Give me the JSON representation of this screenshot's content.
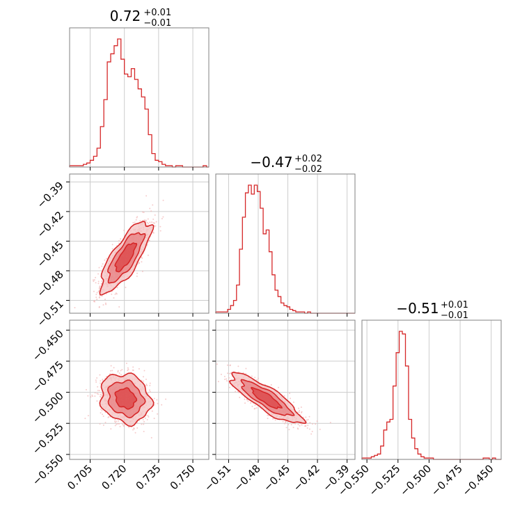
{
  "colors": {
    "accent": "#d62728",
    "fill_light": "#f4c1c2",
    "fill_mid": "#e77f80",
    "fill_dark": "#d62728",
    "grid": "#cccccc",
    "frame": "#808080",
    "scatter": "#f2b6b7"
  },
  "chart_data": [
    {
      "type": "histogram",
      "panel": "hist-1",
      "title": {
        "value": "0.72",
        "plus": "+0.01",
        "minus": "−0.01"
      },
      "xlim": [
        0.696,
        0.757
      ],
      "xticks": [
        0.705,
        0.72,
        0.735,
        0.75
      ],
      "xtick_labels": [
        "0.705",
        "0.720",
        "0.735",
        "0.750"
      ],
      "bin_edges_start": 0.696,
      "bin_width": 0.0015,
      "counts": [
        1,
        1,
        1,
        1,
        2,
        3,
        5,
        8,
        14,
        30,
        50,
        78,
        84,
        90,
        95,
        80,
        69,
        67,
        73,
        65,
        58,
        52,
        43,
        24,
        10,
        5,
        4,
        2,
        1,
        1,
        0,
        1,
        1,
        0,
        0,
        0,
        0,
        0,
        0,
        1,
        0
      ]
    },
    {
      "type": "scatter-contour",
      "panel": "joint-2-1",
      "xlim": [
        0.696,
        0.757
      ],
      "ylim": [
        -0.523,
        -0.382
      ],
      "yticks": [
        -0.39,
        -0.42,
        -0.45,
        -0.48,
        -0.51
      ],
      "ytick_labels": [
        "−0.39",
        "−0.42",
        "−0.45",
        "−0.48",
        "−0.51"
      ],
      "center": [
        0.7205,
        -0.466
      ],
      "sigma": [
        0.0055,
        0.018
      ],
      "correlation": 0.78
    },
    {
      "type": "histogram",
      "panel": "hist-2",
      "title": {
        "value": "−0.47",
        "plus": "+0.02",
        "minus": "−0.02"
      },
      "xlim": [
        -0.523,
        -0.382
      ],
      "xticks": [
        -0.51,
        -0.48,
        -0.45,
        -0.42,
        -0.39
      ],
      "xtick_labels": [
        "−0.51",
        "−0.48",
        "−0.45",
        "−0.42",
        "−0.39"
      ],
      "bin_edges_start": -0.523,
      "bin_width": 0.003,
      "counts": [
        1,
        1,
        1,
        1,
        3,
        6,
        10,
        22,
        50,
        75,
        94,
        100,
        93,
        100,
        95,
        82,
        62,
        65,
        48,
        30,
        18,
        13,
        8,
        6,
        5,
        3,
        2,
        1,
        1,
        1,
        0,
        1,
        0,
        0,
        0,
        0,
        0,
        0,
        0,
        0,
        0,
        0,
        0,
        0,
        0,
        0,
        0
      ]
    },
    {
      "type": "scatter-contour",
      "panel": "joint-3-1",
      "xlim": [
        0.696,
        0.757
      ],
      "ylim": [
        -0.554,
        -0.442
      ],
      "yticks": [
        -0.45,
        -0.475,
        -0.5,
        -0.525,
        -0.55
      ],
      "ytick_labels": [
        "−0.450",
        "−0.475",
        "−0.500",
        "−0.525",
        "−0.550"
      ],
      "center": [
        0.7205,
        -0.505
      ],
      "sigma": [
        0.0055,
        0.01
      ],
      "correlation": -0.15
    },
    {
      "type": "scatter-contour",
      "panel": "joint-3-2",
      "xlim": [
        -0.523,
        -0.382
      ],
      "ylim": [
        -0.554,
        -0.442
      ],
      "center": [
        -0.472,
        -0.505
      ],
      "sigma": [
        0.018,
        0.01
      ],
      "correlation": -0.85
    },
    {
      "type": "histogram",
      "panel": "hist-3",
      "title": {
        "value": "−0.51",
        "plus": "+0.01",
        "minus": "−0.01"
      },
      "xlim": [
        -0.554,
        -0.442
      ],
      "xticks": [
        -0.55,
        -0.525,
        -0.5,
        -0.475,
        -0.45
      ],
      "xtick_labels": [
        "−0.550",
        "−0.525",
        "−0.500",
        "−0.475",
        "−0.450"
      ],
      "bin_edges_start": -0.554,
      "bin_width": 0.0025,
      "counts": [
        1,
        1,
        1,
        2,
        3,
        4,
        10,
        22,
        28,
        30,
        55,
        80,
        96,
        94,
        70,
        30,
        16,
        8,
        4,
        2,
        1,
        1,
        1,
        0,
        0,
        0,
        0,
        0,
        0,
        0,
        0,
        0,
        0,
        0,
        0,
        0,
        0,
        0,
        0,
        1,
        1,
        0,
        1,
        0,
        0
      ]
    }
  ]
}
